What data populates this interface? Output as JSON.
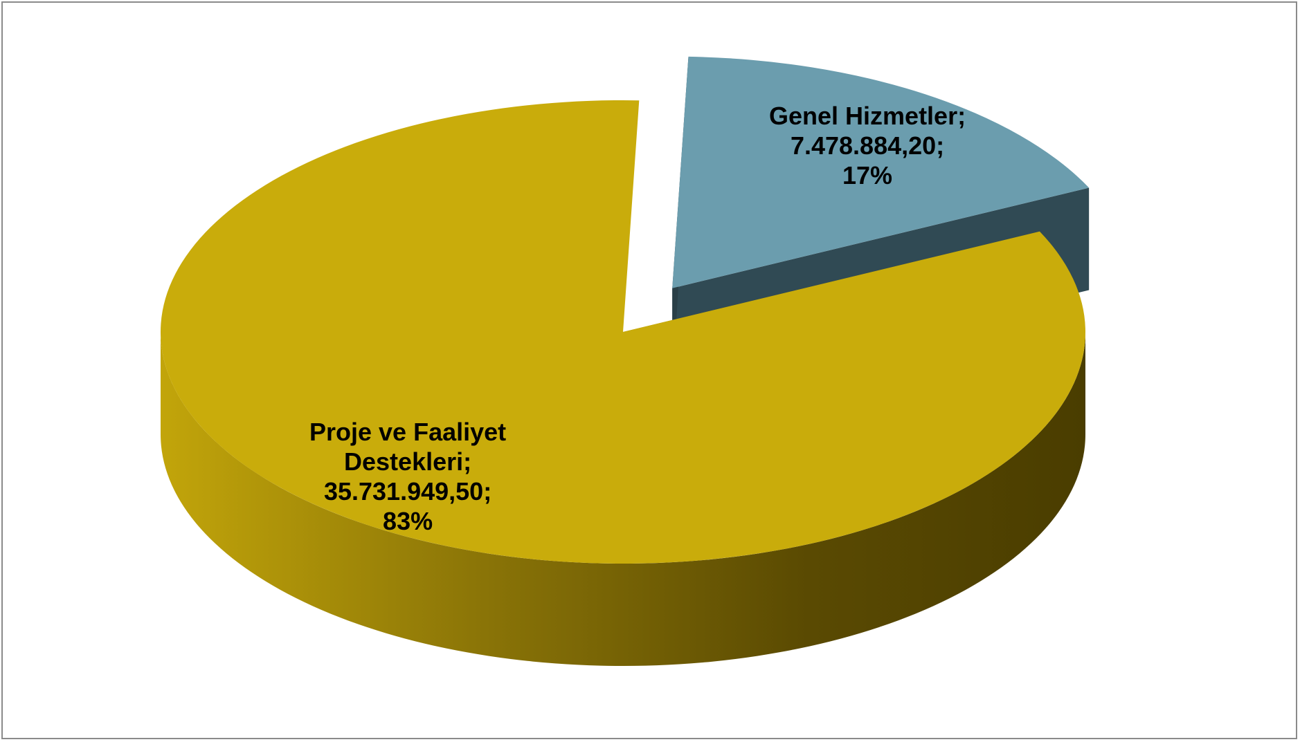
{
  "chart_data": {
    "type": "pie",
    "style": "3d-exploded",
    "title": "",
    "slices": [
      {
        "label_lines": [
          "Genel Hizmetler;",
          "7.478.884,20;",
          "17%"
        ],
        "category": "Genel Hizmetler",
        "value": 7478884.2,
        "value_text": "7.478.884,20",
        "percent": 17,
        "percent_text": "17%",
        "color": "#6b9dae",
        "side_color": "#304a54",
        "exploded": true
      },
      {
        "label_lines": [
          "Proje ve Faaliyet",
          "Destekleri;",
          "35.731.949,50;",
          "83%"
        ],
        "category": "Proje ve Faaliyet Destekleri",
        "value": 35731949.5,
        "value_text": "35.731.949,50",
        "percent": 83,
        "percent_text": "83%",
        "color": "#c9ac0b",
        "side_color": "#7a6606",
        "exploded": false
      }
    ],
    "legend": "none"
  }
}
